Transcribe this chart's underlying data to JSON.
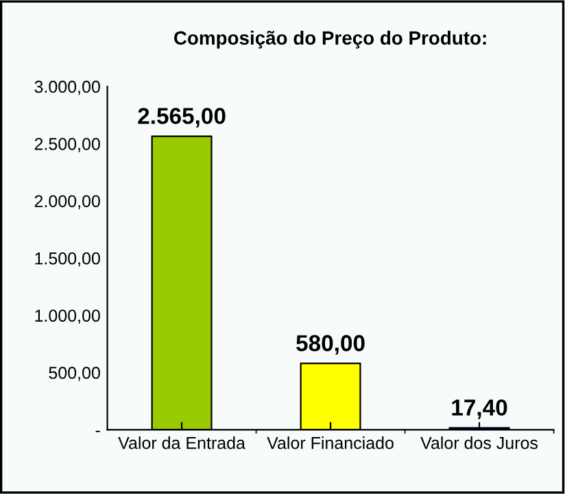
{
  "chart_data": {
    "type": "bar",
    "title": "Composição do Preço do Produto:",
    "categories": [
      "Valor da Entrada",
      "Valor Financiado",
      "Valor dos Juros"
    ],
    "values": [
      2565,
      580,
      17.4
    ],
    "colors": [
      "#99cc00",
      "#ffff00",
      "#000080"
    ],
    "value_labels": [
      "2.565,00",
      "580,00",
      "17,40"
    ],
    "ylim": [
      0,
      3000
    ],
    "yticks": [
      {
        "value": 0,
        "label": "-"
      },
      {
        "value": 500,
        "label": "500,00"
      },
      {
        "value": 1000,
        "label": "1.000,00"
      },
      {
        "value": 1500,
        "label": "1.500,00"
      },
      {
        "value": 2000,
        "label": "2.000,00"
      },
      {
        "value": 2500,
        "label": "2.500,00"
      },
      {
        "value": 3000,
        "label": "3.000,00"
      }
    ],
    "grid": false,
    "legend": false
  }
}
